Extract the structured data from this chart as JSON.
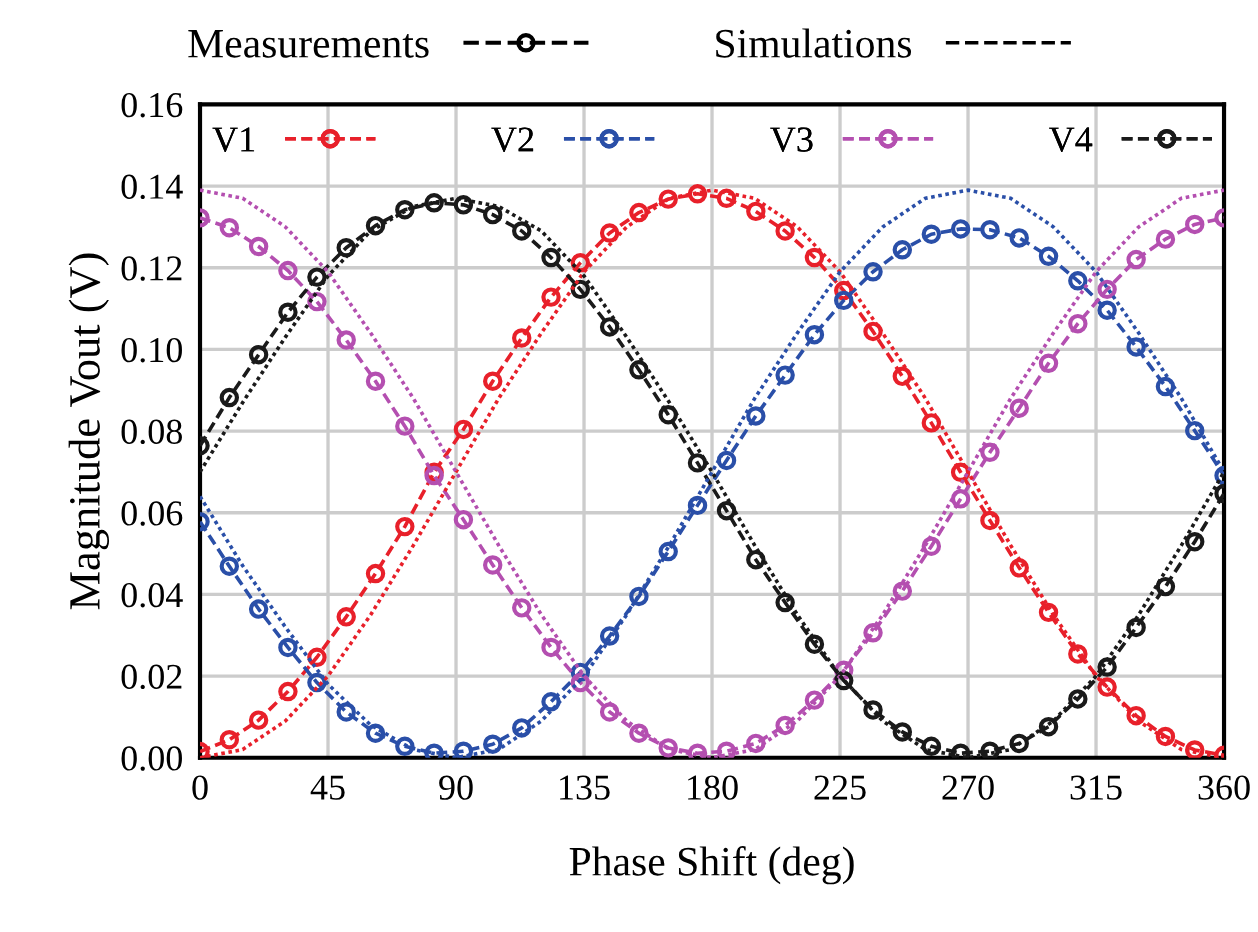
{
  "chart_data": {
    "type": "line",
    "xlabel": "Phase Shift (deg)",
    "ylabel": "Magnitude Vout (V)",
    "annotations": [
      "Measurements",
      "Simulations"
    ],
    "x": [
      0,
      10.3,
      20.6,
      30.9,
      41.1,
      51.4,
      61.7,
      72,
      82.3,
      92.6,
      102.9,
      113.1,
      123.4,
      133.7,
      144,
      154.3,
      164.6,
      174.9,
      185.1,
      195.4,
      205.7,
      216,
      226.3,
      236.6,
      246.9,
      257.1,
      267.4,
      277.7,
      288,
      298.3,
      308.6,
      318.9,
      329.1,
      339.4,
      349.7,
      360
    ],
    "xlim": [
      0,
      360
    ],
    "xticks": [
      0,
      45,
      90,
      135,
      180,
      225,
      270,
      315,
      360
    ],
    "ylim": [
      0,
      0.16
    ],
    "yticks": [
      {
        "value": 0,
        "label": "0.00"
      },
      {
        "value": 0.02,
        "label": "0.02"
      },
      {
        "value": 0.04,
        "label": "0.04"
      },
      {
        "value": 0.06,
        "label": "0.06"
      },
      {
        "value": 0.08,
        "label": "0.08"
      },
      {
        "value": 0.1,
        "label": "0.10"
      },
      {
        "value": 0.12,
        "label": "0.12"
      },
      {
        "value": 0.14,
        "label": "0.14"
      },
      {
        "value": 0.16,
        "label": "0.16"
      }
    ],
    "grid": true,
    "legend": "top",
    "series": [
      {
        "name": "V1",
        "color": "#e8202a",
        "marker": "circle",
        "line_style": "dashed",
        "values": [
          0.0015,
          0.0044,
          0.0092,
          0.0162,
          0.0246,
          0.0345,
          0.0451,
          0.0566,
          0.0699,
          0.0804,
          0.0922,
          0.1028,
          0.1128,
          0.1212,
          0.1285,
          0.1335,
          0.1368,
          0.1381,
          0.137,
          0.1338,
          0.129,
          0.1225,
          0.1144,
          0.1044,
          0.0934,
          0.082,
          0.0699,
          0.0581,
          0.0465,
          0.0356,
          0.0254,
          0.0173,
          0.0103,
          0.0052,
          0.0019,
          0.0006
        ]
      },
      {
        "name": "V2",
        "color": "#2a4fa8",
        "marker": "circle",
        "line_style": "dashed",
        "values": [
          0.0578,
          0.0469,
          0.0364,
          0.027,
          0.0184,
          0.0112,
          0.006,
          0.0028,
          0.0011,
          0.0016,
          0.0033,
          0.0073,
          0.0137,
          0.0209,
          0.0298,
          0.0395,
          0.0505,
          0.0618,
          0.0728,
          0.0837,
          0.0937,
          0.1036,
          0.112,
          0.119,
          0.1244,
          0.1282,
          0.1295,
          0.1293,
          0.1273,
          0.1228,
          0.1168,
          0.1096,
          0.1006,
          0.0909,
          0.0801,
          0.0691
        ]
      },
      {
        "name": "V3",
        "color": "#b44fb0",
        "marker": "circle",
        "line_style": "dashed",
        "values": [
          0.1322,
          0.1298,
          0.1252,
          0.1193,
          0.1117,
          0.1023,
          0.0922,
          0.0812,
          0.0691,
          0.0583,
          0.0472,
          0.0367,
          0.027,
          0.0184,
          0.0112,
          0.006,
          0.0024,
          0.0011,
          0.0016,
          0.0035,
          0.0079,
          0.0141,
          0.0214,
          0.0306,
          0.0408,
          0.0518,
          0.0634,
          0.0748,
          0.0856,
          0.0966,
          0.1063,
          0.1147,
          0.122,
          0.127,
          0.1306,
          0.1322
        ]
      },
      {
        "name": "V4",
        "color": "#1a1a1a",
        "marker": "circle",
        "line_style": "dashed",
        "values": [
          0.0764,
          0.0882,
          0.0987,
          0.1091,
          0.1177,
          0.1249,
          0.1303,
          0.1342,
          0.1359,
          0.1354,
          0.133,
          0.129,
          0.1225,
          0.1147,
          0.1055,
          0.095,
          0.084,
          0.0722,
          0.0605,
          0.0485,
          0.038,
          0.0278,
          0.0189,
          0.0117,
          0.0063,
          0.0028,
          0.0011,
          0.0016,
          0.0035,
          0.0076,
          0.0144,
          0.0222,
          0.0319,
          0.0419,
          0.0529,
          0.0647
        ]
      },
      {
        "color": "#e8202a",
        "marker": "none",
        "line_style": "dotted",
        "x": [
          0,
          15,
          30,
          45,
          60,
          75,
          90,
          105,
          120,
          135,
          150,
          165,
          180,
          195,
          210,
          225,
          240,
          255,
          270,
          285,
          300,
          315,
          330,
          345,
          360
        ],
        "values": [
          0,
          0.002,
          0.009,
          0.02,
          0.035,
          0.052,
          0.07,
          0.088,
          0.104,
          0.119,
          0.13,
          0.137,
          0.139,
          0.137,
          0.13,
          0.119,
          0.104,
          0.088,
          0.07,
          0.052,
          0.035,
          0.02,
          0.009,
          0.002,
          0
        ]
      },
      {
        "color": "#2a4fa8",
        "marker": "none",
        "line_style": "dotted",
        "x": [
          0,
          15,
          30,
          45,
          60,
          75,
          90,
          105,
          120,
          135,
          150,
          165,
          180,
          195,
          210,
          225,
          240,
          255,
          270,
          285,
          300,
          315,
          330,
          345,
          360
        ],
        "values": [
          0.064,
          0.047,
          0.032,
          0.018,
          0.008,
          0.002,
          0,
          0.002,
          0.009,
          0.02,
          0.035,
          0.052,
          0.07,
          0.088,
          0.104,
          0.119,
          0.13,
          0.137,
          0.139,
          0.137,
          0.13,
          0.119,
          0.104,
          0.088,
          0.07
        ]
      },
      {
        "color": "#b44fb0",
        "marker": "none",
        "line_style": "dotted",
        "x": [
          0,
          15,
          30,
          45,
          60,
          75,
          90,
          105,
          120,
          135,
          150,
          165,
          180,
          195,
          210,
          225,
          240,
          255,
          270,
          285,
          300,
          315,
          330,
          345,
          360
        ],
        "values": [
          0.139,
          0.137,
          0.13,
          0.119,
          0.104,
          0.088,
          0.07,
          0.052,
          0.035,
          0.02,
          0.009,
          0.002,
          0,
          0.002,
          0.009,
          0.02,
          0.035,
          0.052,
          0.07,
          0.088,
          0.104,
          0.119,
          0.13,
          0.137,
          0.139
        ]
      },
      {
        "color": "#1a1a1a",
        "marker": "none",
        "line_style": "dotted",
        "x": [
          0,
          15,
          30,
          45,
          60,
          75,
          90,
          105,
          120,
          135,
          150,
          165,
          180,
          195,
          210,
          225,
          240,
          255,
          270,
          285,
          300,
          315,
          330,
          345,
          360
        ],
        "values": [
          0.07,
          0.087,
          0.103,
          0.118,
          0.129,
          0.135,
          0.137,
          0.135,
          0.129,
          0.118,
          0.103,
          0.087,
          0.07,
          0.052,
          0.035,
          0.02,
          0.009,
          0.002,
          0,
          0.002,
          0.009,
          0.02,
          0.035,
          0.052,
          0.07
        ]
      }
    ]
  }
}
